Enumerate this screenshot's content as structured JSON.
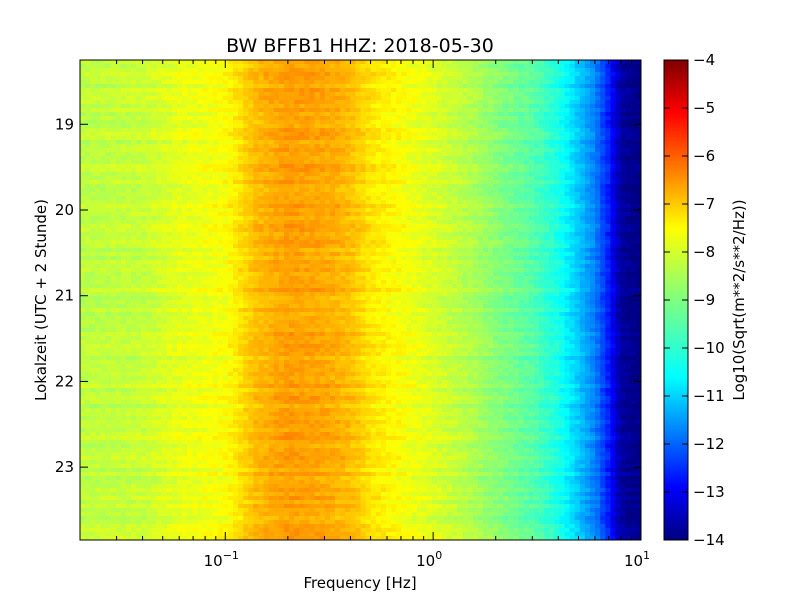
{
  "chart_data": {
    "type": "heatmap",
    "title": "BW BFFB1 HHZ: 2018-05-30",
    "xlabel": "Frequency [Hz]",
    "ylabel": "Lokalzeit (UTC + 2 Stunde)",
    "x_scale": "log",
    "xlim": [
      0.02,
      10
    ],
    "x_ticks": [
      {
        "value": 0.1,
        "base": "10",
        "exp": "−1"
      },
      {
        "value": 1,
        "base": "10",
        "exp": "0"
      },
      {
        "value": 10,
        "base": "10",
        "exp": "1"
      }
    ],
    "ylim": [
      18.25,
      23.85
    ],
    "y_ticks": [
      19,
      20,
      21,
      22,
      23
    ],
    "colorbar": {
      "label": "Log10(Sqrt(m**2/s**2/Hz))",
      "range": [
        -14,
        -4
      ],
      "ticks": [
        "−4",
        "−5",
        "−6",
        "−7",
        "−8",
        "−9",
        "−10",
        "−11",
        "−12",
        "−13",
        "−14"
      ],
      "colormap": "jet"
    },
    "spectrum_profile": {
      "frequency_hz": [
        0.02,
        0.04,
        0.06,
        0.08,
        0.1,
        0.14,
        0.2,
        0.3,
        0.4,
        0.5,
        0.7,
        1.0,
        1.5,
        2.0,
        3.0,
        4.0,
        5.0,
        6.0,
        7.0,
        8.0,
        10.0
      ],
      "level": [
        -8.4,
        -8.3,
        -8.0,
        -7.9,
        -7.8,
        -7.1,
        -6.8,
        -6.9,
        -7.1,
        -7.5,
        -7.8,
        -8.1,
        -8.5,
        -8.9,
        -9.4,
        -10.0,
        -10.8,
        -11.5,
        -12.5,
        -13.7,
        -14.0
      ]
    },
    "grid": false
  }
}
